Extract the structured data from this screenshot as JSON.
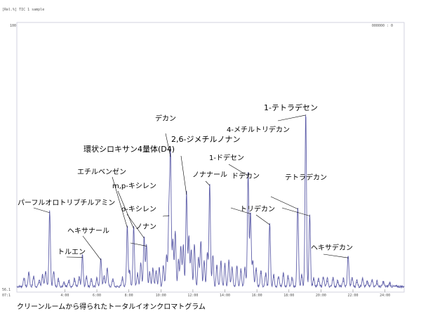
{
  "header": {
    "left_text": "[Rel.%] TIC 1 sample",
    "right_badge": "000000 : 0"
  },
  "caption": "クリーンルームから得られたトータルイオンクロマトグラム",
  "chart_data": {
    "type": "line",
    "title": "",
    "xlabel": "",
    "ylabel": "",
    "ylim_label": "100",
    "y_start_label": "56.1",
    "x_start_label": "07:1",
    "xlim": [
      1.0,
      25.2
    ],
    "ylim": [
      0,
      100
    ],
    "x_ticks": [
      "4:00",
      "6:00",
      "8:00",
      "10:00",
      "12:00",
      "14:00",
      "16:00",
      "18:00",
      "20:00",
      "22:00",
      "24:00"
    ],
    "x_tick_values": [
      4,
      6,
      8,
      10,
      12,
      14,
      16,
      18,
      20,
      22,
      24
    ],
    "color": "#6060aa",
    "peaks": [
      {
        "x": 1.45,
        "y": 3.5
      },
      {
        "x": 1.75,
        "y": 5.5
      },
      {
        "x": 2.05,
        "y": 4.0
      },
      {
        "x": 2.4,
        "y": 2.5
      },
      {
        "x": 2.6,
        "y": 4.5
      },
      {
        "x": 2.8,
        "y": 6.0
      },
      {
        "x": 3.05,
        "y": 28.7
      },
      {
        "x": 3.3,
        "y": 6.0
      },
      {
        "x": 3.6,
        "y": 3.0
      },
      {
        "x": 3.95,
        "y": 2.0
      },
      {
        "x": 4.25,
        "y": 2.5
      },
      {
        "x": 4.6,
        "y": 3.0
      },
      {
        "x": 4.9,
        "y": 3.5
      },
      {
        "x": 5.1,
        "y": 12.0
      },
      {
        "x": 5.35,
        "y": 4.0
      },
      {
        "x": 5.65,
        "y": 3.0
      },
      {
        "x": 6.0,
        "y": 3.5
      },
      {
        "x": 6.25,
        "y": 11.0
      },
      {
        "x": 6.45,
        "y": 4.0
      },
      {
        "x": 6.65,
        "y": 7.0
      },
      {
        "x": 7.0,
        "y": 3.0
      },
      {
        "x": 7.6,
        "y": 3.5
      },
      {
        "x": 7.9,
        "y": 23.1
      },
      {
        "x": 8.05,
        "y": 6.0
      },
      {
        "x": 8.3,
        "y": 22.8
      },
      {
        "x": 8.55,
        "y": 5.0
      },
      {
        "x": 8.75,
        "y": 9.0
      },
      {
        "x": 8.95,
        "y": 19.2
      },
      {
        "x": 9.1,
        "y": 16.2
      },
      {
        "x": 9.3,
        "y": 5.5
      },
      {
        "x": 9.5,
        "y": 7.0
      },
      {
        "x": 9.7,
        "y": 6.0
      },
      {
        "x": 9.9,
        "y": 7.5
      },
      {
        "x": 10.15,
        "y": 8.0
      },
      {
        "x": 10.35,
        "y": 12.0
      },
      {
        "x": 10.5,
        "y": 27.6
      },
      {
        "x": 10.6,
        "y": 49.7
      },
      {
        "x": 10.75,
        "y": 17.9
      },
      {
        "x": 10.9,
        "y": 21.0
      },
      {
        "x": 11.1,
        "y": 10.0
      },
      {
        "x": 11.25,
        "y": 15.5
      },
      {
        "x": 11.4,
        "y": 15.9
      },
      {
        "x": 11.6,
        "y": 35.5
      },
      {
        "x": 11.75,
        "y": 19.0
      },
      {
        "x": 11.9,
        "y": 14.0
      },
      {
        "x": 12.1,
        "y": 16.0
      },
      {
        "x": 12.35,
        "y": 11.0
      },
      {
        "x": 12.5,
        "y": 17.0
      },
      {
        "x": 12.7,
        "y": 10.0
      },
      {
        "x": 12.9,
        "y": 13.0
      },
      {
        "x": 13.05,
        "y": 38.9
      },
      {
        "x": 13.25,
        "y": 12.0
      },
      {
        "x": 13.5,
        "y": 8.0
      },
      {
        "x": 13.75,
        "y": 9.5
      },
      {
        "x": 14.0,
        "y": 8.5
      },
      {
        "x": 14.25,
        "y": 10.0
      },
      {
        "x": 14.45,
        "y": 7.5
      },
      {
        "x": 14.75,
        "y": 8.0
      },
      {
        "x": 15.0,
        "y": 6.5
      },
      {
        "x": 15.25,
        "y": 7.5
      },
      {
        "x": 15.45,
        "y": 42.5
      },
      {
        "x": 15.6,
        "y": 28.3
      },
      {
        "x": 15.75,
        "y": 10.0
      },
      {
        "x": 15.95,
        "y": 7.0
      },
      {
        "x": 16.25,
        "y": 6.0
      },
      {
        "x": 16.55,
        "y": 5.0
      },
      {
        "x": 16.8,
        "y": 24.2
      },
      {
        "x": 17.05,
        "y": 4.5
      },
      {
        "x": 17.35,
        "y": 4.0
      },
      {
        "x": 17.65,
        "y": 5.0
      },
      {
        "x": 17.95,
        "y": 4.0
      },
      {
        "x": 18.2,
        "y": 3.5
      },
      {
        "x": 18.55,
        "y": 30.1
      },
      {
        "x": 18.8,
        "y": 4.5
      },
      {
        "x": 19.05,
        "y": 65.3
      },
      {
        "x": 19.3,
        "y": 27.5
      },
      {
        "x": 19.55,
        "y": 3.5
      },
      {
        "x": 19.85,
        "y": 3.0
      },
      {
        "x": 20.15,
        "y": 4.0
      },
      {
        "x": 20.4,
        "y": 3.0
      },
      {
        "x": 20.75,
        "y": 3.5
      },
      {
        "x": 21.05,
        "y": 2.5
      },
      {
        "x": 21.4,
        "y": 3.0
      },
      {
        "x": 21.7,
        "y": 11.8
      },
      {
        "x": 21.95,
        "y": 3.5
      },
      {
        "x": 22.25,
        "y": 2.5
      },
      {
        "x": 22.6,
        "y": 3.5
      },
      {
        "x": 22.9,
        "y": 2.0
      },
      {
        "x": 23.2,
        "y": 3.0
      },
      {
        "x": 23.5,
        "y": 2.0
      },
      {
        "x": 23.9,
        "y": 2.0
      },
      {
        "x": 24.3,
        "y": 1.5
      }
    ],
    "annotations": [
      {
        "text": "パーフルオロトリブチルアミン",
        "x": 3.05,
        "y": 28.7
      },
      {
        "text": "トルエン",
        "x": 5.1,
        "y": 12.0
      },
      {
        "text": "ヘキサナール",
        "x": 6.25,
        "y": 11.0
      },
      {
        "text": "エチルベンゼン",
        "x": 7.9,
        "y": 23.1
      },
      {
        "text": "m,p-キシレン",
        "x": 8.3,
        "y": 22.8
      },
      {
        "text": "o-キシレン",
        "x": 8.95,
        "y": 19.2
      },
      {
        "text": "ノナン",
        "x": 9.1,
        "y": 16.2
      },
      {
        "text": "環状シロキサン4量体(D4)",
        "x": 10.5,
        "y": 27.6
      },
      {
        "text": "デカン",
        "x": 10.6,
        "y": 49.7
      },
      {
        "text": "2,6-ジメチルノナン",
        "x": 11.6,
        "y": 35.5
      },
      {
        "text": "ノナナール",
        "x": 13.05,
        "y": 38.9
      },
      {
        "text": "1-ドデセン",
        "x": 15.45,
        "y": 42.5
      },
      {
        "text": "ドデカン",
        "x": 15.6,
        "y": 28.3
      },
      {
        "text": "トリデカン",
        "x": 16.8,
        "y": 24.2
      },
      {
        "text": "4-メチルトリデカン",
        "x": 18.55,
        "y": 30.1
      },
      {
        "text": "1-テトラデセン",
        "x": 19.05,
        "y": 65.3
      },
      {
        "text": "テトラデカン",
        "x": 19.3,
        "y": 27.5
      },
      {
        "text": "ヘキサデカン",
        "x": 21.7,
        "y": 11.8
      }
    ]
  }
}
